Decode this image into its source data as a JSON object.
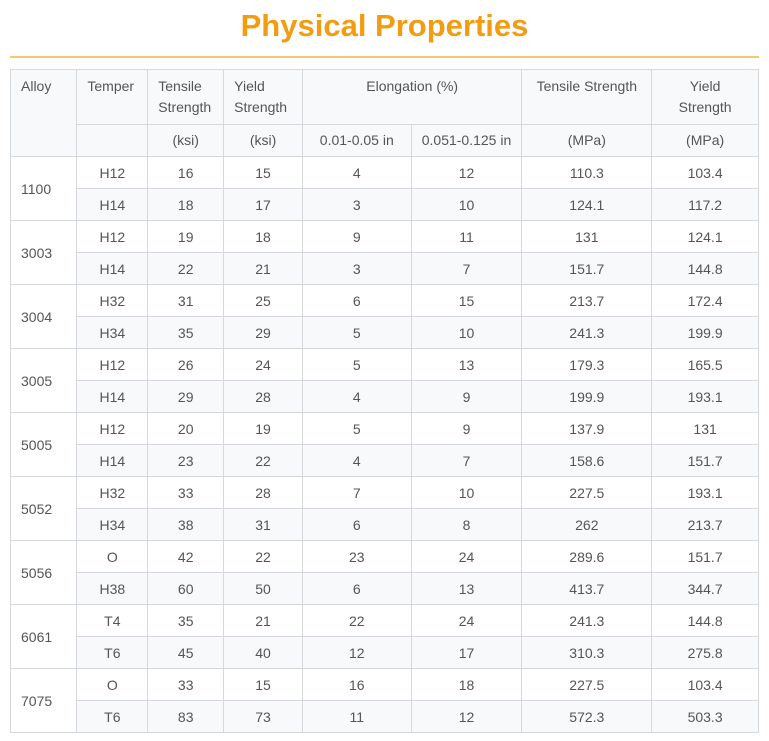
{
  "title": "Physical Properties",
  "header": {
    "row1": [
      "Alloy",
      "Temper",
      "Tensile Strength",
      "Yield Strength",
      "Elongation (%)",
      "Tensile Strength",
      "Yield Strength"
    ],
    "row2": [
      "",
      "(ksi)",
      "(ksi)",
      "0.01-0.05 in",
      "0.051-0.125 in",
      "(MPa)",
      "(MPa)"
    ]
  },
  "alloys": [
    {
      "alloy": "1100",
      "rows": [
        [
          "H12",
          "16",
          "15",
          "4",
          "12",
          "110.3",
          "103.4"
        ],
        [
          "H14",
          "18",
          "17",
          "3",
          "10",
          "124.1",
          "117.2"
        ]
      ]
    },
    {
      "alloy": "3003",
      "rows": [
        [
          "H12",
          "19",
          "18",
          "9",
          "11",
          "131",
          "124.1"
        ],
        [
          "H14",
          "22",
          "21",
          "3",
          "7",
          "151.7",
          "144.8"
        ]
      ]
    },
    {
      "alloy": "3004",
      "rows": [
        [
          "H32",
          "31",
          "25",
          "6",
          "15",
          "213.7",
          "172.4"
        ],
        [
          "H34",
          "35",
          "29",
          "5",
          "10",
          "241.3",
          "199.9"
        ]
      ]
    },
    {
      "alloy": "3005",
      "rows": [
        [
          "H12",
          "26",
          "24",
          "5",
          "13",
          "179.3",
          "165.5"
        ],
        [
          "H14",
          "29",
          "28",
          "4",
          "9",
          "199.9",
          "193.1"
        ]
      ]
    },
    {
      "alloy": "5005",
      "rows": [
        [
          "H12",
          "20",
          "19",
          "5",
          "9",
          "137.9",
          "131"
        ],
        [
          "H14",
          "23",
          "22",
          "4",
          "7",
          "158.6",
          "151.7"
        ]
      ]
    },
    {
      "alloy": "5052",
      "rows": [
        [
          "H32",
          "33",
          "28",
          "7",
          "10",
          "227.5",
          "193.1"
        ],
        [
          "H34",
          "38",
          "31",
          "6",
          "8",
          "262",
          "213.7"
        ]
      ]
    },
    {
      "alloy": "5056",
      "rows": [
        [
          "O",
          "42",
          "22",
          "23",
          "24",
          "289.6",
          "151.7"
        ],
        [
          "H38",
          "60",
          "50",
          "6",
          "13",
          "413.7",
          "344.7"
        ]
      ]
    },
    {
      "alloy": "6061",
      "rows": [
        [
          "T4",
          "35",
          "21",
          "22",
          "24",
          "241.3",
          "144.8"
        ],
        [
          "T6",
          "45",
          "40",
          "12",
          "17",
          "310.3",
          "275.8"
        ]
      ]
    },
    {
      "alloy": "7075",
      "rows": [
        [
          "O",
          "33",
          "15",
          "16",
          "18",
          "227.5",
          "103.4"
        ],
        [
          "T6",
          "83",
          "73",
          "11",
          "12",
          "572.3",
          "503.3"
        ]
      ]
    }
  ],
  "colors": {
    "title": "#f39c12",
    "rule": "#f6c778",
    "header_bg": "#f8f9fa"
  }
}
